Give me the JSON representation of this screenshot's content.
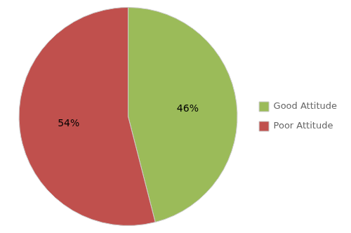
{
  "chart_data": {
    "type": "pie",
    "categories": [
      "Good Attitude",
      "Poor Attitude"
    ],
    "values": [
      46,
      54
    ],
    "value_labels": [
      "46%",
      "54%"
    ],
    "colors": [
      "#9BBB59",
      "#C0504D"
    ],
    "data_labels": true,
    "legend": "right"
  }
}
